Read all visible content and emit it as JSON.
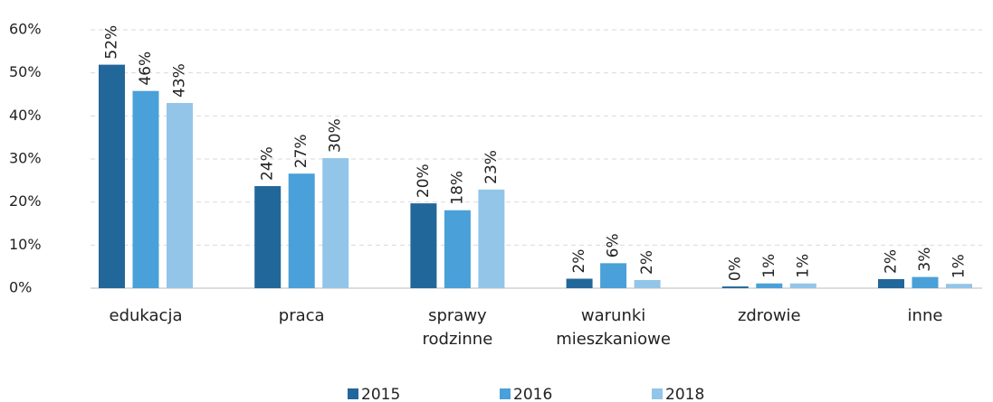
{
  "chart_data": {
    "type": "bar",
    "categories": [
      "edukacja",
      "praca",
      "sprawy rodzinne",
      "warunki mieszkaniowe",
      "zdrowie",
      "inne"
    ],
    "series": [
      {
        "name": "2015",
        "color": "#22679a",
        "values": [
          51.9,
          23.7,
          19.7,
          2.2,
          0.4,
          2.1
        ],
        "value_labels": [
          "52%",
          "24%",
          "20%",
          "2%",
          "0%",
          "2%"
        ]
      },
      {
        "name": "2016",
        "color": "#4aa0d8",
        "values": [
          45.8,
          26.6,
          18.1,
          5.8,
          1.1,
          2.6
        ],
        "value_labels": [
          "46%",
          "27%",
          "18%",
          "6%",
          "1%",
          "3%"
        ]
      },
      {
        "name": "2018",
        "color": "#93c5e8",
        "values": [
          43.0,
          30.2,
          22.9,
          1.9,
          1.1,
          1.0
        ],
        "value_labels": [
          "43%",
          "30%",
          "23%",
          "2%",
          "1%",
          "1%"
        ]
      }
    ],
    "ylim": [
      0,
      60
    ],
    "yticks": [
      {
        "value": 0,
        "label": "0%"
      },
      {
        "value": 10,
        "label": "10%"
      },
      {
        "value": 20,
        "label": "20%"
      },
      {
        "value": 30,
        "label": "30%"
      },
      {
        "value": 40,
        "label": "40%"
      },
      {
        "value": 50,
        "label": "50%"
      },
      {
        "value": 60,
        "label": "60%"
      }
    ],
    "grid": true,
    "legend": "bottom"
  }
}
